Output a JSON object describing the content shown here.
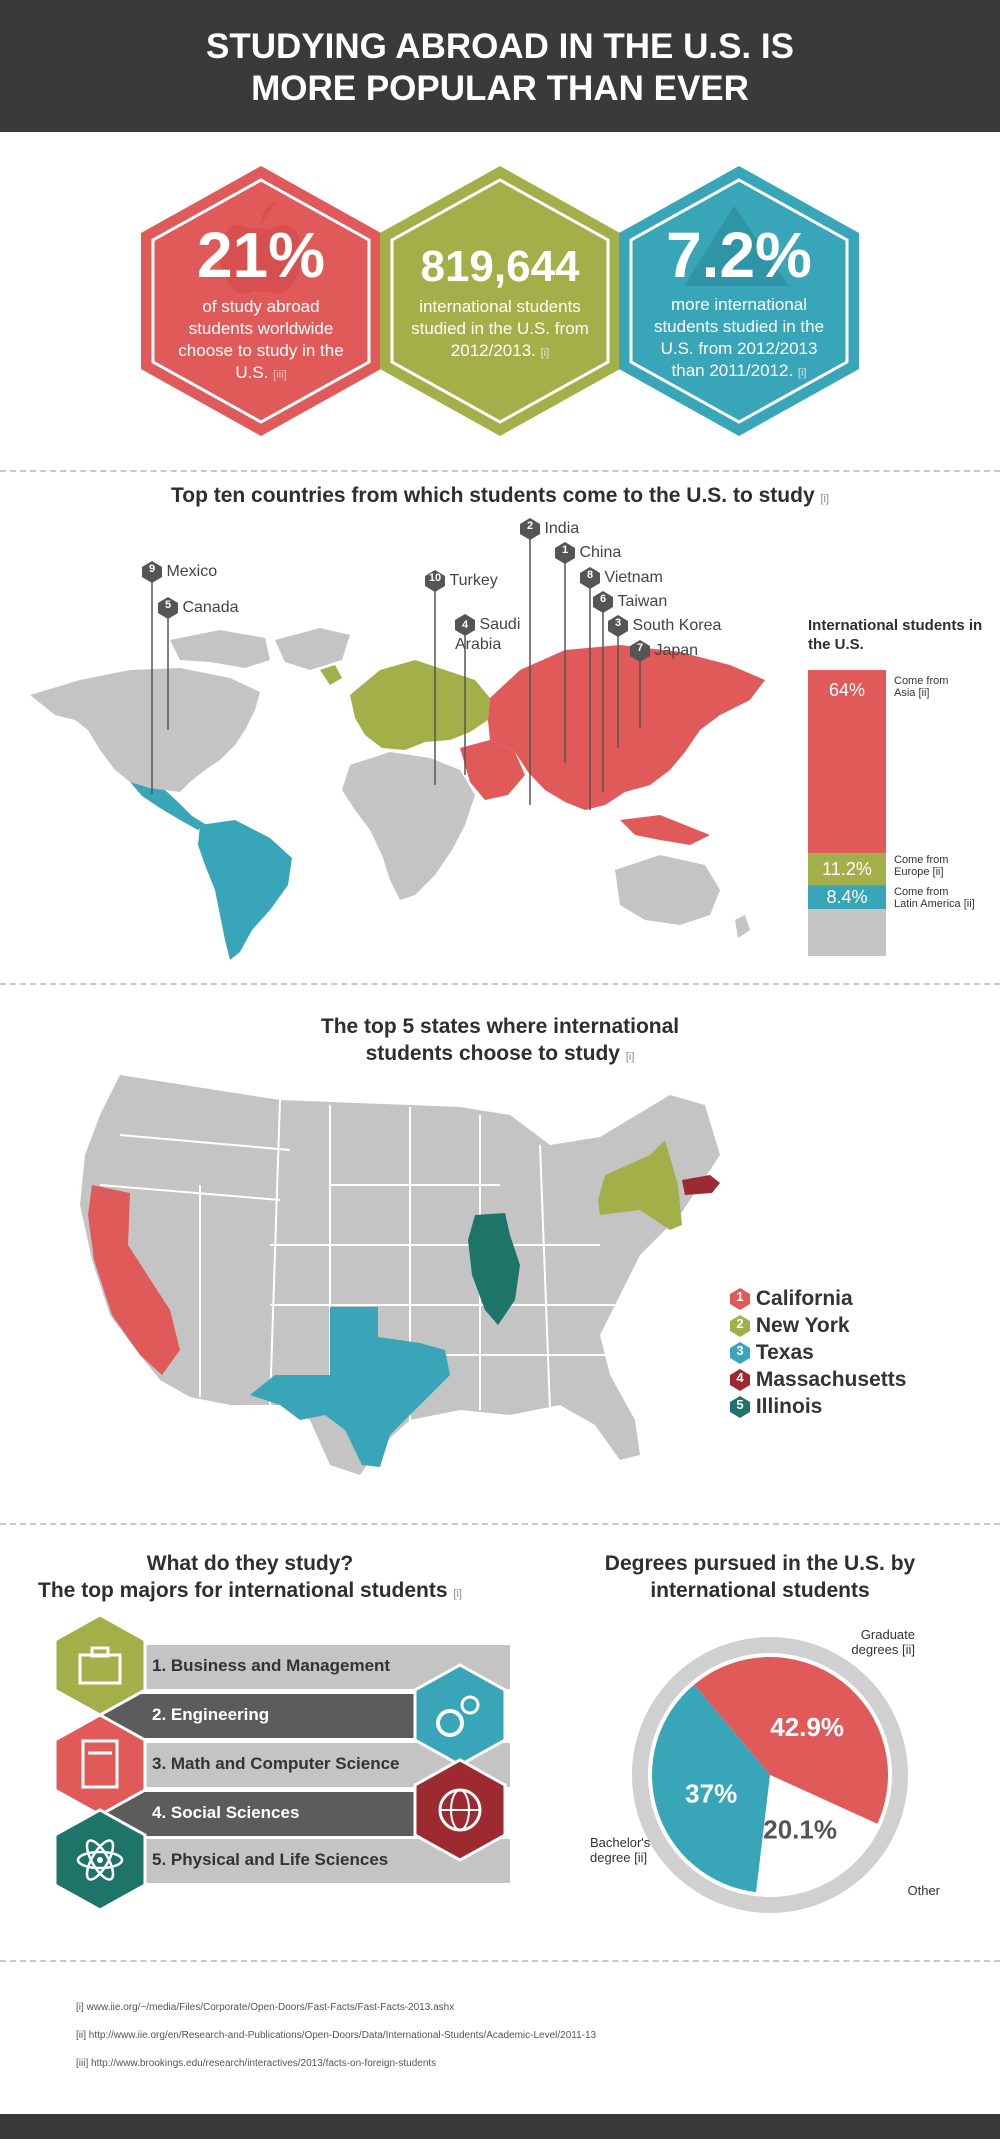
{
  "header": {
    "title_line1": "STUDYING ABROAD IN THE U.S. IS",
    "title_line2": "MORE POPULAR THAN EVER"
  },
  "colors": {
    "red": "#e05a5a",
    "green": "#a3b04a",
    "teal": "#38a6b8",
    "gray": "#c4c4c4",
    "dark": "#3a3a3a",
    "darkred": "#9c2a30",
    "darkteal": "#1e7468"
  },
  "stats": [
    {
      "big": "21%",
      "text": "of study abroad students worldwide choose to study in the U.S.",
      "ref": "[iii]"
    },
    {
      "big": "819,644",
      "text": "international students studied in the U.S. from 2012/2013.",
      "ref": "[i]"
    },
    {
      "big": "7.2%",
      "text": "more international students studied in the U.S. from 2012/2013 than 2011/2012.",
      "ref": "[i]"
    }
  ],
  "map_section": {
    "title": "Top ten countries from which students come to the U.S. to study",
    "ref": "[i]",
    "countries": [
      {
        "rank": "1",
        "name": "China"
      },
      {
        "rank": "2",
        "name": "India"
      },
      {
        "rank": "3",
        "name": "South Korea"
      },
      {
        "rank": "4",
        "name": "Saudi Arabia"
      },
      {
        "rank": "5",
        "name": "Canada"
      },
      {
        "rank": "6",
        "name": "Taiwan"
      },
      {
        "rank": "7",
        "name": "Japan"
      },
      {
        "rank": "8",
        "name": "Vietnam"
      },
      {
        "rank": "9",
        "name": "Mexico"
      },
      {
        "rank": "10",
        "name": "Turkey"
      }
    ]
  },
  "chart_data": [
    {
      "type": "bar",
      "title": "International students in the U.S.",
      "stacked": true,
      "series": [
        {
          "name": "Come from Asia",
          "value": 64,
          "label": "64%",
          "ref": "[ii]",
          "color": "#e05a5a"
        },
        {
          "name": "Come from Europe",
          "value": 11.2,
          "label": "11.2%",
          "ref": "[ii]",
          "color": "#a3b04a"
        },
        {
          "name": "Come from Latin America",
          "value": 8.4,
          "label": "8.4%",
          "ref": "[ii]",
          "color": "#38a6b8"
        },
        {
          "name": "",
          "value": 16.4,
          "label": "",
          "ref": "",
          "color": "#c4c4c4"
        }
      ]
    },
    {
      "type": "pie",
      "title": "Degrees pursued in the U.S. by international students",
      "slices": [
        {
          "name": "Graduate degrees",
          "value": 42.9,
          "label": "42.9%",
          "ref": "[ii]",
          "color": "#e05a5a"
        },
        {
          "name": "Other",
          "value": 20.1,
          "label": "20.1%",
          "ref": "",
          "color": "#ffffff"
        },
        {
          "name": "Bachelor's degree",
          "value": 37,
          "label": "37%",
          "ref": "[ii]",
          "color": "#38a6b8"
        }
      ]
    }
  ],
  "states_section": {
    "title_line1": "The top 5 states where international",
    "title_line2": "students choose to study",
    "ref": "[i]",
    "states": [
      {
        "rank": "1",
        "name": "California",
        "color": "#e05a5a"
      },
      {
        "rank": "2",
        "name": "New York",
        "color": "#a3b04a"
      },
      {
        "rank": "3",
        "name": "Texas",
        "color": "#38a6b8"
      },
      {
        "rank": "4",
        "name": "Massachusetts",
        "color": "#9c2a30"
      },
      {
        "rank": "5",
        "name": "Illinois",
        "color": "#1e7468"
      }
    ]
  },
  "majors_section": {
    "title": "What do they study?",
    "subtitle": "The top majors for international students",
    "ref": "[i]",
    "majors": [
      "1. Business and Management",
      "2. Engineering",
      "3. Math and Computer Science",
      "4. Social Sciences",
      "5. Physical and Life Sciences"
    ],
    "icons": [
      "briefcase-icon",
      "gears-icon",
      "calculator-icon",
      "globe-icon",
      "atom-icon"
    ]
  },
  "pie_labels": {
    "title_line1": "Degrees pursued in the U.S. by",
    "title_line2": "international students"
  },
  "footnotes": [
    "[i] www.iie.org/~/media/Files/Corporate/Open-Doors/Fast-Facts/Fast-Facts-2013.ashx",
    "[ii] http://www.iie.org/en/Research-and-Publications/Open-Doors/Data/International-Students/Academic-Level/2011-13",
    "[iii] http://www.brookings.edu/research/interactives/2013/facts-on-foreign-students"
  ]
}
